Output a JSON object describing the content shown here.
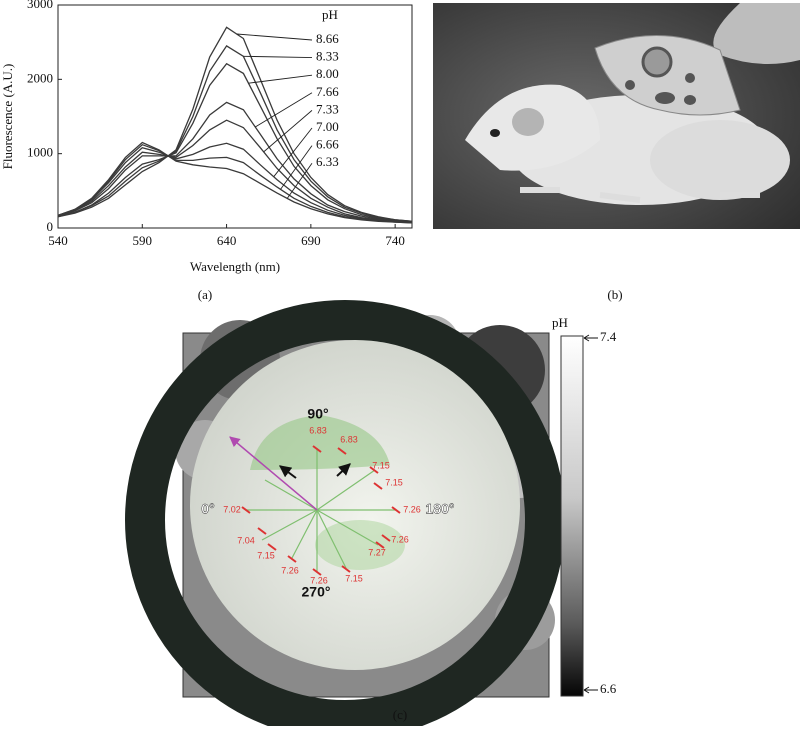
{
  "chart_data": {
    "type": "line",
    "x_label": "Wavelength (nm)",
    "y_label": "Fluorescence (A.U.)",
    "legend_title": "pH",
    "x": [
      540,
      550,
      560,
      570,
      580,
      590,
      600,
      610,
      620,
      630,
      640,
      650,
      660,
      670,
      680,
      690,
      700,
      710,
      720,
      730,
      740,
      750
    ],
    "xlim": [
      540,
      750
    ],
    "xticks": [
      540,
      590,
      640,
      690,
      740
    ],
    "ylim": [
      0,
      3000
    ],
    "yticks": [
      0,
      1000,
      2000,
      3000
    ],
    "grid": false,
    "series": [
      {
        "name": "8.66",
        "color": "#3a3a3a",
        "values": [
          150,
          200,
          280,
          400,
          580,
          760,
          880,
          1050,
          1600,
          2300,
          2700,
          2550,
          2000,
          1450,
          1000,
          680,
          450,
          300,
          210,
          150,
          110,
          90
        ]
      },
      {
        "name": "8.33",
        "color": "#3a3a3a",
        "values": [
          150,
          210,
          300,
          430,
          630,
          810,
          900,
          1030,
          1500,
          2110,
          2450,
          2310,
          1820,
          1320,
          920,
          630,
          420,
          280,
          200,
          140,
          110,
          90
        ]
      },
      {
        "name": "8.00",
        "color": "#3a3a3a",
        "values": [
          160,
          210,
          310,
          470,
          680,
          860,
          920,
          1010,
          1410,
          1920,
          2210,
          2080,
          1640,
          1200,
          830,
          570,
          380,
          260,
          180,
          130,
          100,
          90
        ]
      },
      {
        "name": "7.66",
        "color": "#3a3a3a",
        "values": [
          160,
          230,
          340,
          530,
          780,
          970,
          970,
          970,
          1200,
          1520,
          1690,
          1590,
          1260,
          930,
          660,
          460,
          310,
          220,
          160,
          120,
          90,
          80
        ]
      },
      {
        "name": "7.33",
        "color": "#3a3a3a",
        "values": [
          160,
          230,
          360,
          570,
          820,
          1020,
          990,
          950,
          1110,
          1320,
          1450,
          1350,
          1080,
          800,
          570,
          400,
          280,
          190,
          140,
          110,
          90,
          80
        ]
      },
      {
        "name": "7.00",
        "color": "#3a3a3a",
        "values": [
          170,
          240,
          380,
          610,
          880,
          1080,
          1020,
          930,
          990,
          1090,
          1140,
          1060,
          850,
          650,
          470,
          340,
          240,
          170,
          130,
          100,
          90,
          70
        ]
      },
      {
        "name": "6.66",
        "color": "#3a3a3a",
        "values": [
          170,
          250,
          390,
          630,
          920,
          1120,
          1040,
          910,
          910,
          940,
          950,
          880,
          710,
          550,
          400,
          290,
          210,
          150,
          120,
          100,
          80,
          70
        ]
      },
      {
        "name": "6.33",
        "color": "#3a3a3a",
        "values": [
          170,
          250,
          400,
          650,
          950,
          1150,
          1050,
          900,
          850,
          820,
          800,
          730,
          600,
          470,
          350,
          260,
          190,
          140,
          110,
          90,
          80,
          70
        ]
      }
    ]
  },
  "captions": {
    "a": "(a)",
    "b": "(b)",
    "c": "(c)"
  },
  "map": {
    "angles": [
      "90°",
      "0°",
      "180°",
      "270°"
    ],
    "readings": [
      "6.83",
      "6.83",
      "7.15",
      "7.15",
      "7.26",
      "7.26",
      "7.27",
      "7.15",
      "7.26",
      "7.26",
      "7.15",
      "7.04",
      "7.02"
    ],
    "colorbar": {
      "title": "pH",
      "top": "7.4",
      "bottom": "6.6"
    }
  }
}
